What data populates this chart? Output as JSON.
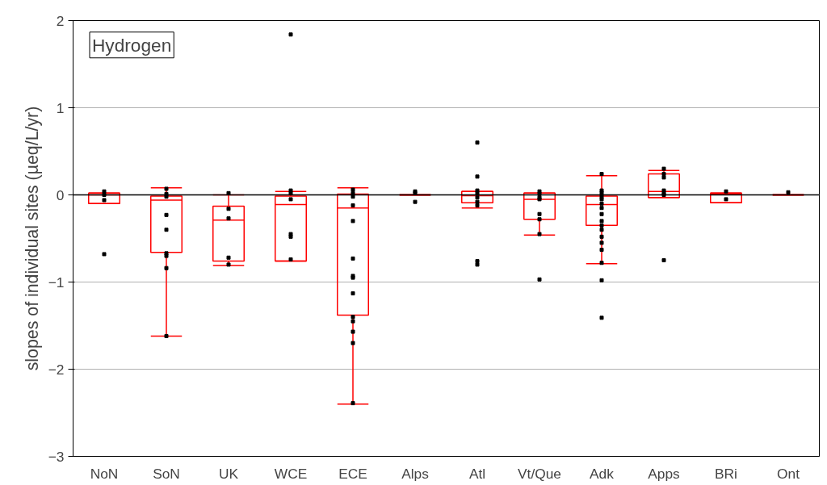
{
  "chart_data": {
    "type": "box",
    "title": "Hydrogen",
    "ylabel": "slopes of individual sites (µeq/L/yr)",
    "categories": [
      "NoN",
      "SoN",
      "UK",
      "WCE",
      "ECE",
      "Alps",
      "Atl",
      "Vt/Que",
      "Adk",
      "Apps",
      "BRi",
      "Ont"
    ],
    "color": "#ff0000",
    "boxes": [
      {
        "low": -0.1,
        "q1": -0.1,
        "median": 0.0,
        "q3": 0.02,
        "high": 0.02
      },
      {
        "low": -1.62,
        "q1": -0.66,
        "median": -0.06,
        "q3": -0.015,
        "high": 0.08
      },
      {
        "low": -0.81,
        "q1": -0.76,
        "median": -0.29,
        "q3": -0.13,
        "high": 0.0
      },
      {
        "low": -0.76,
        "q1": -0.76,
        "median": -0.11,
        "q3": -0.015,
        "high": 0.04
      },
      {
        "low": -2.4,
        "q1": -1.38,
        "median": -0.15,
        "q3": 0.01,
        "high": 0.08
      },
      {
        "low": 0.0,
        "q1": 0.0,
        "median": 0.0,
        "q3": 0.0,
        "high": 0.0
      },
      {
        "low": -0.15,
        "q1": -0.09,
        "median": -0.01,
        "q3": 0.04,
        "high": 0.04
      },
      {
        "low": -0.46,
        "q1": -0.28,
        "median": -0.05,
        "q3": 0.02,
        "high": 0.02
      },
      {
        "low": -0.79,
        "q1": -0.35,
        "median": -0.11,
        "q3": -0.015,
        "high": 0.22
      },
      {
        "low": -0.03,
        "q1": -0.03,
        "median": 0.04,
        "q3": 0.24,
        "high": 0.28
      },
      {
        "low": -0.09,
        "q1": -0.09,
        "median": 0.01,
        "q3": 0.02,
        "high": 0.02
      },
      {
        "low": 0.0,
        "q1": 0.0,
        "median": 0.0,
        "q3": 0.0,
        "high": 0.0
      }
    ],
    "series": [
      {
        "type": "scatter",
        "color": "#000000",
        "marker": "square",
        "x": [
          "NoN",
          "NoN",
          "NoN",
          "NoN",
          "SoN",
          "SoN",
          "SoN",
          "SoN",
          "SoN",
          "SoN",
          "SoN",
          "SoN",
          "SoN",
          "UK",
          "UK",
          "UK",
          "UK",
          "UK",
          "WCE",
          "WCE",
          "WCE",
          "WCE",
          "WCE",
          "WCE",
          "WCE",
          "ECE",
          "ECE",
          "ECE",
          "ECE",
          "ECE",
          "ECE",
          "ECE",
          "ECE",
          "ECE",
          "ECE",
          "ECE",
          "ECE",
          "ECE",
          "ECE",
          "Alps",
          "Alps",
          "Alps",
          "Atl",
          "Atl",
          "Atl",
          "Atl",
          "Atl",
          "Atl",
          "Atl",
          "Atl",
          "Atl",
          "Vt/Que",
          "Vt/Que",
          "Vt/Que",
          "Vt/Que",
          "Vt/Que",
          "Vt/Que",
          "Vt/Que",
          "Vt/Que",
          "Adk",
          "Adk",
          "Adk",
          "Adk",
          "Adk",
          "Adk",
          "Adk",
          "Adk",
          "Adk",
          "Adk",
          "Adk",
          "Adk",
          "Adk",
          "Adk",
          "Adk",
          "Adk",
          "Adk",
          "Apps",
          "Apps",
          "Apps",
          "Apps",
          "Apps",
          "Apps",
          "Apps",
          "BRi",
          "BRi",
          "Ont"
        ],
        "values": [
          0.04,
          0.0,
          -0.06,
          -0.68,
          0.07,
          0.01,
          -0.02,
          -0.23,
          -0.4,
          -0.67,
          -0.7,
          -0.84,
          -1.62,
          0.02,
          -0.16,
          -0.27,
          -0.72,
          -0.8,
          1.84,
          0.05,
          0.02,
          -0.05,
          -0.45,
          -0.48,
          -0.74,
          0.06,
          0.02,
          -0.02,
          -0.12,
          -0.3,
          -0.73,
          -0.93,
          -0.95,
          -1.13,
          -1.4,
          -1.45,
          -1.57,
          -1.7,
          -2.39,
          0.04,
          0.02,
          -0.08,
          0.6,
          0.21,
          0.05,
          0.02,
          -0.03,
          -0.08,
          -0.12,
          -0.76,
          -0.8,
          0.04,
          0.01,
          -0.03,
          -0.05,
          -0.22,
          -0.28,
          -0.45,
          -0.97,
          0.24,
          0.05,
          0.02,
          -0.02,
          -0.05,
          -0.1,
          -0.15,
          -0.22,
          -0.3,
          -0.35,
          -0.4,
          -0.48,
          -0.55,
          -0.63,
          -0.78,
          -0.98,
          -1.41,
          0.3,
          0.24,
          0.2,
          0.05,
          0.02,
          0.0,
          -0.75,
          0.04,
          -0.05,
          0.03
        ]
      }
    ],
    "ylim": [
      -3,
      2
    ],
    "yticks": [
      -3,
      -2,
      -1,
      0,
      1,
      2
    ],
    "grid": "y",
    "ref_lines": [
      {
        "axis": "y",
        "value": 0,
        "color": "#000000"
      }
    ]
  }
}
